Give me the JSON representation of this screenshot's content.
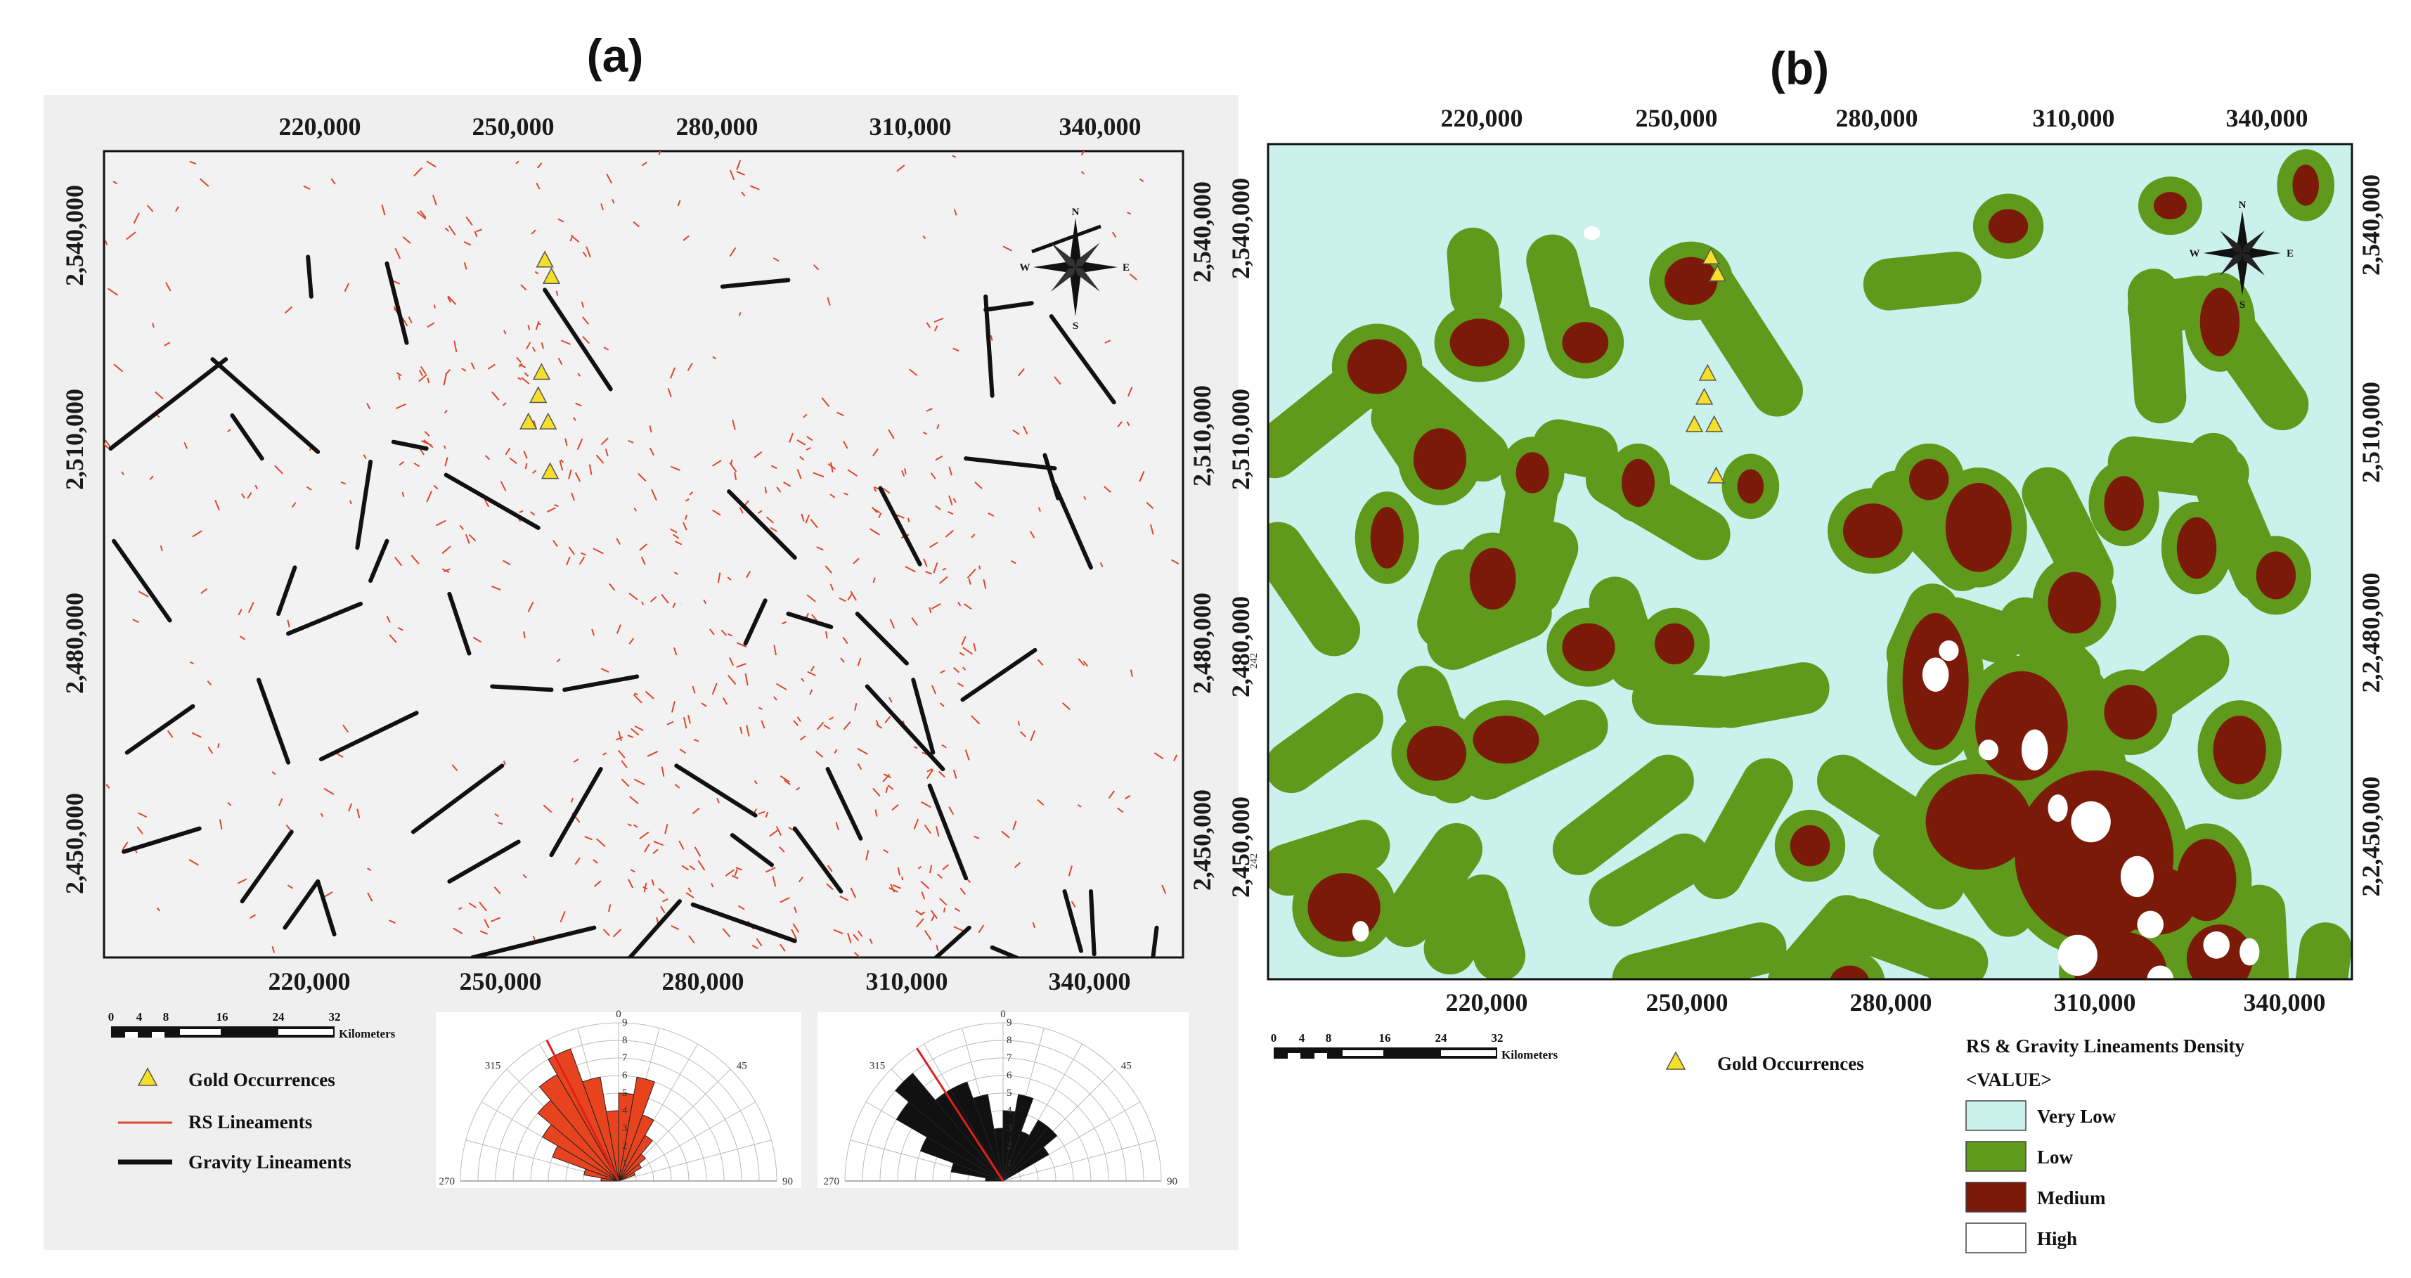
{
  "titles": {
    "a": "(a)",
    "b": "(b)"
  },
  "axes": {
    "x_ticks": [
      "220,000",
      "250,000",
      "280,000",
      "310,000",
      "340,000"
    ],
    "y_ticks": [
      "2,540,000",
      "2,510,000",
      "2,480,000",
      "2,450,000"
    ],
    "y_ticks_right_b": [
      "2,540,000",
      "2,510,000",
      "2,2,480,000",
      "2,2,450,000"
    ],
    "overlap_digits": "242",
    "x_range": [
      196000,
      360000
    ],
    "y_range": [
      2437000,
      2559000
    ]
  },
  "scale_bar": {
    "ticks": [
      "0",
      "4",
      "8",
      "16",
      "24",
      "32"
    ],
    "unit": "Kilometers"
  },
  "legend_a": {
    "gold": "Gold Occurrences",
    "rs": "RS Lineaments",
    "gravity": "Gravity Lineaments"
  },
  "legend_b": {
    "gold": "Gold Occurrences",
    "title": "RS & Gravity Lineaments Density",
    "value_label": "<VALUE>",
    "classes": [
      {
        "label": "Very Low",
        "color": "#cbf1ec"
      },
      {
        "label": "Low",
        "color": "#5f9a1c"
      },
      {
        "label": "Medium",
        "color": "#7b1a08"
      },
      {
        "label": "High",
        "color": "#ffffff"
      }
    ]
  },
  "compass": {
    "n": "N",
    "s": "S",
    "e": "E",
    "w": "W"
  },
  "colors": {
    "rs_lineament": "#e0452a",
    "gravity_lineament": "#111111",
    "gold": "#f5df28",
    "map_background_a": "#f2f2f2"
  },
  "rose_diagram": {
    "angle_labels": [
      "270",
      "315",
      "0",
      "45",
      "90"
    ],
    "radial_labels": [
      "1",
      "2",
      "3",
      "4",
      "5",
      "6",
      "7",
      "8",
      "9"
    ]
  },
  "gold_occurrences": [
    {
      "x": 263000,
      "y": 2542500
    },
    {
      "x": 264000,
      "y": 2540000
    },
    {
      "x": 262500,
      "y": 2525500
    },
    {
      "x": 262000,
      "y": 2522000
    },
    {
      "x": 260500,
      "y": 2518000
    },
    {
      "x": 263500,
      "y": 2518000
    },
    {
      "x": 263800,
      "y": 2510500
    }
  ],
  "rose_rs": [
    {
      "angle": 295,
      "value": 4
    },
    {
      "angle": 305,
      "value": 5
    },
    {
      "angle": 315,
      "value": 6
    },
    {
      "angle": 325,
      "value": 7
    },
    {
      "angle": 335,
      "value": 8
    },
    {
      "angle": 345,
      "value": 6
    },
    {
      "angle": 355,
      "value": 4
    },
    {
      "angle": 5,
      "value": 5
    },
    {
      "angle": 15,
      "value": 6
    },
    {
      "angle": 25,
      "value": 4
    },
    {
      "angle": 35,
      "value": 3
    },
    {
      "angle": 285,
      "value": 2
    },
    {
      "angle": 45,
      "value": 2
    },
    {
      "angle": 55,
      "value": 1.5
    },
    {
      "angle": 65,
      "value": 1
    },
    {
      "angle": 275,
      "value": 1
    }
  ],
  "rose_gravity": [
    {
      "angle": 295,
      "value": 5
    },
    {
      "angle": 305,
      "value": 7
    },
    {
      "angle": 315,
      "value": 8
    },
    {
      "angle": 325,
      "value": 6
    },
    {
      "angle": 335,
      "value": 6
    },
    {
      "angle": 345,
      "value": 5
    },
    {
      "angle": 355,
      "value": 3
    },
    {
      "angle": 5,
      "value": 4
    },
    {
      "angle": 15,
      "value": 5
    },
    {
      "angle": 25,
      "value": 3
    },
    {
      "angle": 35,
      "value": 4
    },
    {
      "angle": 45,
      "value": 4
    },
    {
      "angle": 55,
      "value": 3
    },
    {
      "angle": 285,
      "value": 3
    },
    {
      "angle": 275,
      "value": 1
    }
  ],
  "gravity_lineaments": [
    [
      [
        197000,
        2514000
      ],
      [
        214500,
        2527500
      ]
    ],
    [
      [
        212500,
        2527500
      ],
      [
        228500,
        2513500
      ]
    ],
    [
      [
        215500,
        2519000
      ],
      [
        220000,
        2512500
      ]
    ],
    [
      [
        227000,
        2543000
      ],
      [
        227500,
        2537000
      ]
    ],
    [
      [
        239000,
        2542000
      ],
      [
        242000,
        2530000
      ]
    ],
    [
      [
        240000,
        2515000
      ],
      [
        245000,
        2514000
      ]
    ],
    [
      [
        236500,
        2512000
      ],
      [
        234500,
        2499000
      ]
    ],
    [
      [
        248000,
        2510000
      ],
      [
        262000,
        2502000
      ]
    ],
    [
      [
        263000,
        2538000
      ],
      [
        273000,
        2523000
      ]
    ],
    [
      [
        290000,
        2538500
      ],
      [
        300000,
        2539500
      ]
    ],
    [
      [
        330000,
        2535000
      ],
      [
        337000,
        2536000
      ]
    ],
    [
      [
        330000,
        2537000
      ],
      [
        331000,
        2522000
      ]
    ],
    [
      [
        340000,
        2534000
      ],
      [
        349500,
        2521000
      ]
    ],
    [
      [
        339000,
        2513000
      ],
      [
        341000,
        2506500
      ]
    ],
    [
      [
        327000,
        2512500
      ],
      [
        340500,
        2511000
      ]
    ],
    [
      [
        340500,
        2508500
      ],
      [
        346000,
        2496000
      ]
    ],
    [
      [
        197500,
        2500000
      ],
      [
        206000,
        2488000
      ]
    ],
    [
      [
        222500,
        2489000
      ],
      [
        225000,
        2496000
      ]
    ],
    [
      [
        224000,
        2486000
      ],
      [
        235000,
        2490500
      ]
    ],
    [
      [
        236500,
        2494000
      ],
      [
        239000,
        2500000
      ]
    ],
    [
      [
        248500,
        2492000
      ],
      [
        251500,
        2483000
      ]
    ],
    [
      [
        255000,
        2478000
      ],
      [
        264000,
        2477500
      ]
    ],
    [
      [
        266000,
        2477500
      ],
      [
        277000,
        2479500
      ]
    ],
    [
      [
        291000,
        2507500
      ],
      [
        301000,
        2497500
      ]
    ],
    [
      [
        296500,
        2491000
      ],
      [
        293500,
        2484500
      ]
    ],
    [
      [
        300000,
        2489000
      ],
      [
        306500,
        2487000
      ]
    ],
    [
      [
        310500,
        2489000
      ],
      [
        318000,
        2481500
      ]
    ],
    [
      [
        314000,
        2508000
      ],
      [
        320000,
        2496500
      ]
    ],
    [
      [
        312000,
        2478000
      ],
      [
        323500,
        2465500
      ]
    ],
    [
      [
        319000,
        2479000
      ],
      [
        322000,
        2468000
      ]
    ],
    [
      [
        326500,
        2476000
      ],
      [
        337500,
        2483500
      ]
    ],
    [
      [
        199500,
        2468000
      ],
      [
        209500,
        2475000
      ]
    ],
    [
      [
        219500,
        2479000
      ],
      [
        224000,
        2466500
      ]
    ],
    [
      [
        229000,
        2467000
      ],
      [
        243500,
        2474000
      ]
    ],
    [
      [
        243000,
        2456000
      ],
      [
        256500,
        2466000
      ]
    ],
    [
      [
        248500,
        2448500
      ],
      [
        259000,
        2454500
      ]
    ],
    [
      [
        264000,
        2452500
      ],
      [
        271500,
        2465500
      ]
    ],
    [
      [
        283000,
        2466000
      ],
      [
        295000,
        2458500
      ]
    ],
    [
      [
        291500,
        2455500
      ],
      [
        297500,
        2451000
      ]
    ],
    [
      [
        301000,
        2456500
      ],
      [
        308000,
        2447000
      ]
    ],
    [
      [
        306000,
        2465500
      ],
      [
        311000,
        2455000
      ]
    ],
    [
      [
        321500,
        2463000
      ],
      [
        327000,
        2449000
      ]
    ],
    [
      [
        199000,
        2453000
      ],
      [
        210500,
        2456500
      ]
    ],
    [
      [
        217000,
        2445500
      ],
      [
        224500,
        2456000
      ]
    ],
    [
      [
        223500,
        2441500
      ],
      [
        228500,
        2448500
      ]
    ],
    [
      [
        228500,
        2448500
      ],
      [
        231000,
        2440500
      ]
    ],
    [
      [
        252000,
        2437000
      ],
      [
        270500,
        2441500
      ]
    ],
    [
      [
        275500,
        2436500
      ],
      [
        283500,
        2445500
      ]
    ],
    [
      [
        285500,
        2445000
      ],
      [
        301000,
        2439500
      ]
    ],
    [
      [
        318000,
        2433000
      ],
      [
        327500,
        2441500
      ]
    ],
    [
      [
        331000,
        2438500
      ],
      [
        343000,
        2433500
      ]
    ],
    [
      [
        342000,
        2447000
      ],
      [
        344500,
        2438000
      ]
    ],
    [
      [
        284500,
        2430000
      ],
      [
        294500,
        2430000
      ]
    ],
    [
      [
        304000,
        2430000
      ],
      [
        315500,
        2430500
      ]
    ],
    [
      [
        346000,
        2447000
      ],
      [
        346500,
        2437500
      ]
    ],
    [
      [
        356000,
        2441500
      ],
      [
        355000,
        2433500
      ]
    ]
  ],
  "density_medium": [
    [
      260000,
      2539000,
      8000,
      7000
    ],
    [
      228000,
      2530000,
      9000,
      7000
    ],
    [
      244000,
      2530000,
      7000,
      6000
    ],
    [
      340000,
      2533000,
      6000,
      10000
    ],
    [
      308000,
      2547000,
      6000,
      5000
    ],
    [
      332500,
      2550000,
      5000,
      4000
    ],
    [
      353000,
      2553000,
      4000,
      6000
    ],
    [
      212500,
      2526500,
      9000,
      8000
    ],
    [
      222000,
      2513000,
      8000,
      9000
    ],
    [
      236000,
      2511000,
      5000,
      6000
    ],
    [
      252000,
      2509500,
      5000,
      7000
    ],
    [
      269000,
      2509000,
      4000,
      5000
    ],
    [
      214000,
      2501500,
      5000,
      9000
    ],
    [
      230000,
      2495500,
      7000,
      9000
    ],
    [
      244500,
      2485500,
      8000,
      7000
    ],
    [
      257500,
      2486000,
      6000,
      6000
    ],
    [
      221500,
      2470000,
      9000,
      8000
    ],
    [
      232000,
      2472000,
      10000,
      7000
    ],
    [
      278000,
      2456500,
      6000,
      6000
    ],
    [
      207500,
      2447500,
      11000,
      10000
    ],
    [
      284000,
      2436500,
      6000,
      5000
    ],
    [
      296000,
      2510000,
      6000,
      6000
    ],
    [
      287500,
      2502500,
      9000,
      8000
    ],
    [
      303500,
      2503000,
      10000,
      13000
    ],
    [
      325500,
      2506500,
      6000,
      8000
    ],
    [
      336500,
      2500000,
      6000,
      9000
    ],
    [
      348500,
      2496000,
      6000,
      7000
    ],
    [
      318000,
      2492000,
      8000,
      9000
    ],
    [
      297000,
      2480500,
      10000,
      20000
    ],
    [
      326500,
      2476000,
      8000,
      8000
    ],
    [
      343000,
      2470500,
      8000,
      10000
    ],
    [
      310000,
      2474000,
      14000,
      16000
    ],
    [
      321000,
      2455000,
      24000,
      25000
    ],
    [
      303500,
      2460000,
      16000,
      14000
    ],
    [
      330500,
      2448500,
      12000,
      10000
    ],
    [
      338000,
      2451500,
      9000,
      12000
    ],
    [
      325000,
      2438000,
      14000,
      12000
    ],
    [
      340000,
      2440000,
      10000,
      10000
    ]
  ],
  "density_high": [
    [
      297000,
      2481500,
      4000,
      5000
    ],
    [
      312000,
      2470500,
      4000,
      6000
    ],
    [
      315500,
      2462000,
      3000,
      4000
    ],
    [
      320500,
      2460000,
      6000,
      6000
    ],
    [
      327500,
      2452000,
      5000,
      6000
    ],
    [
      329500,
      2445000,
      4000,
      4000
    ],
    [
      339500,
      2442000,
      4000,
      4000
    ],
    [
      318500,
      2440500,
      6000,
      6000
    ],
    [
      340500,
      2430000,
      6000,
      6000
    ],
    [
      326500,
      2433000,
      6000,
      5000
    ],
    [
      331000,
      2437000,
      4000,
      4000
    ],
    [
      305000,
      2470500,
      3000,
      3000
    ],
    [
      299000,
      2485000,
      3000,
      3000
    ],
    [
      210000,
      2444000,
      2500,
      3000
    ],
    [
      245000,
      2546000,
      2500,
      2000
    ],
    [
      344500,
      2441000,
      3000,
      4000
    ]
  ]
}
